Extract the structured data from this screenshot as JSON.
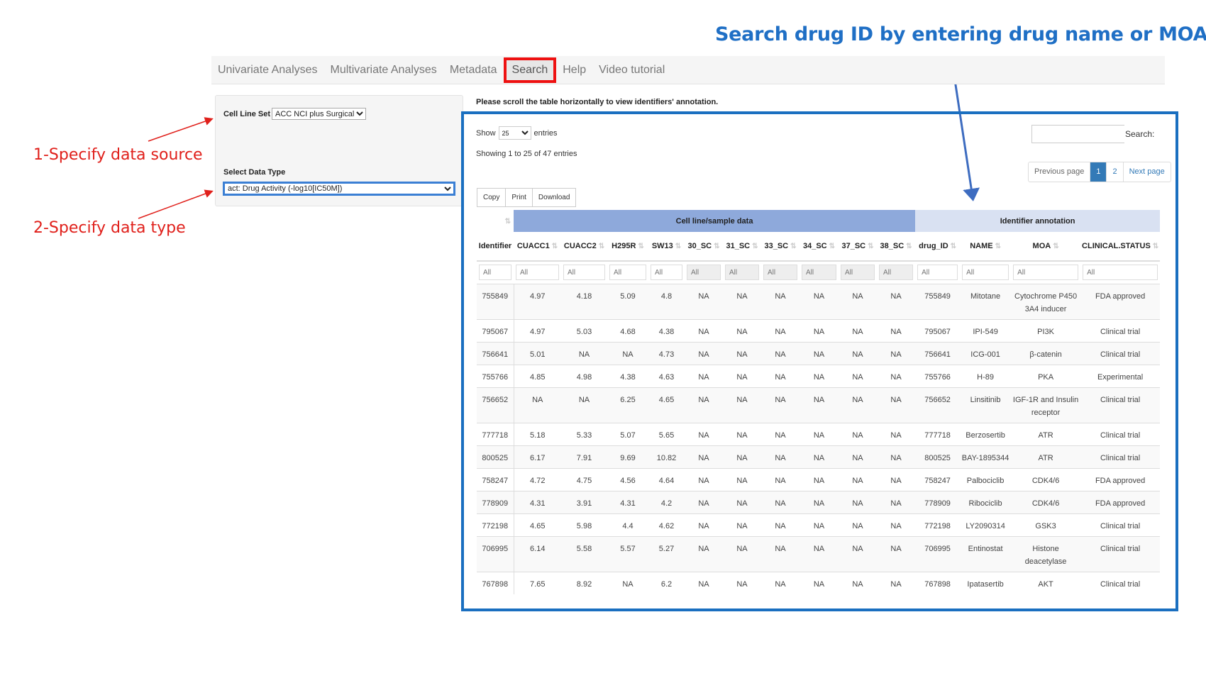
{
  "headline": "Search drug ID by entering drug  name or MOA",
  "annotations": {
    "step1": "1-Specify data source",
    "step2": "2-Specify data type",
    "colors": {
      "red": "#e0201b",
      "blue": "#1f6fc5"
    }
  },
  "nav": {
    "items": [
      "Univariate Analyses",
      "Multivariate Analyses",
      "Metadata",
      "Search",
      "Help",
      "Video tutorial"
    ],
    "active": "Search"
  },
  "panel": {
    "cell_line_label": "Cell Line Set",
    "cell_line_value": "ACC NCI plus Surgical",
    "data_type_label": "Select Data Type",
    "data_type_value": "act: Drug Activity (-log10[IC50M])"
  },
  "instruction": "Please scroll the table horizontally to view identifiers' annotation.",
  "table_controls": {
    "show": "Show",
    "length": "25",
    "entries": "entries",
    "info": "Showing 1 to 25 of 47 entries",
    "search_label": "Search:",
    "search_value": "",
    "buttons": [
      "Copy",
      "Print",
      "Download"
    ],
    "pager": {
      "prev": "Previous page",
      "pages": [
        "1",
        "2"
      ],
      "current": "1",
      "next": "Next page"
    }
  },
  "groups": {
    "cell": "Cell line/sample data",
    "annot": "Identifier annotation"
  },
  "columns": [
    "Identifier",
    "CUACC1",
    "CUACC2",
    "H295R",
    "SW13",
    "30_SC",
    "31_SC",
    "33_SC",
    "34_SC",
    "37_SC",
    "38_SC",
    "drug_ID",
    "NAME",
    "MOA",
    "CLINICAL.STATUS"
  ],
  "filter_placeholder": "All",
  "rows": [
    [
      "755849",
      "4.97",
      "4.18",
      "5.09",
      "4.8",
      "NA",
      "NA",
      "NA",
      "NA",
      "NA",
      "NA",
      "755849",
      "Mitotane",
      "Cytochrome P450 3A4 inducer",
      "FDA approved"
    ],
    [
      "795067",
      "4.97",
      "5.03",
      "4.68",
      "4.38",
      "NA",
      "NA",
      "NA",
      "NA",
      "NA",
      "NA",
      "795067",
      "IPI-549",
      "PI3K",
      "Clinical trial"
    ],
    [
      "756641",
      "5.01",
      "NA",
      "NA",
      "4.73",
      "NA",
      "NA",
      "NA",
      "NA",
      "NA",
      "NA",
      "756641",
      "ICG-001",
      "β-catenin",
      "Clinical trial"
    ],
    [
      "755766",
      "4.85",
      "4.98",
      "4.38",
      "4.63",
      "NA",
      "NA",
      "NA",
      "NA",
      "NA",
      "NA",
      "755766",
      "H-89",
      "PKA",
      "Experimental"
    ],
    [
      "756652",
      "NA",
      "NA",
      "6.25",
      "4.65",
      "NA",
      "NA",
      "NA",
      "NA",
      "NA",
      "NA",
      "756652",
      "Linsitinib",
      "IGF-1R and Insulin receptor",
      "Clinical trial"
    ],
    [
      "777718",
      "5.18",
      "5.33",
      "5.07",
      "5.65",
      "NA",
      "NA",
      "NA",
      "NA",
      "NA",
      "NA",
      "777718",
      "Berzosertib",
      "ATR",
      "Clinical trial"
    ],
    [
      "800525",
      "6.17",
      "7.91",
      "9.69",
      "10.82",
      "NA",
      "NA",
      "NA",
      "NA",
      "NA",
      "NA",
      "800525",
      "BAY-1895344",
      "ATR",
      "Clinical trial"
    ],
    [
      "758247",
      "4.72",
      "4.75",
      "4.56",
      "4.64",
      "NA",
      "NA",
      "NA",
      "NA",
      "NA",
      "NA",
      "758247",
      "Palbociclib",
      "CDK4/6",
      "FDA approved"
    ],
    [
      "778909",
      "4.31",
      "3.91",
      "4.31",
      "4.2",
      "NA",
      "NA",
      "NA",
      "NA",
      "NA",
      "NA",
      "778909",
      "Ribociclib",
      "CDK4/6",
      "FDA approved"
    ],
    [
      "772198",
      "4.65",
      "5.98",
      "4.4",
      "4.62",
      "NA",
      "NA",
      "NA",
      "NA",
      "NA",
      "NA",
      "772198",
      "LY2090314",
      "GSK3",
      "Clinical trial"
    ],
    [
      "706995",
      "6.14",
      "5.58",
      "5.57",
      "5.27",
      "NA",
      "NA",
      "NA",
      "NA",
      "NA",
      "NA",
      "706995",
      "Entinostat",
      "Histone deacetylase",
      "Clinical trial"
    ],
    [
      "767898",
      "7.65",
      "8.92",
      "NA",
      "6.2",
      "NA",
      "NA",
      "NA",
      "NA",
      "NA",
      "NA",
      "767898",
      "Ipatasertib",
      "AKT",
      "Clinical trial"
    ]
  ]
}
